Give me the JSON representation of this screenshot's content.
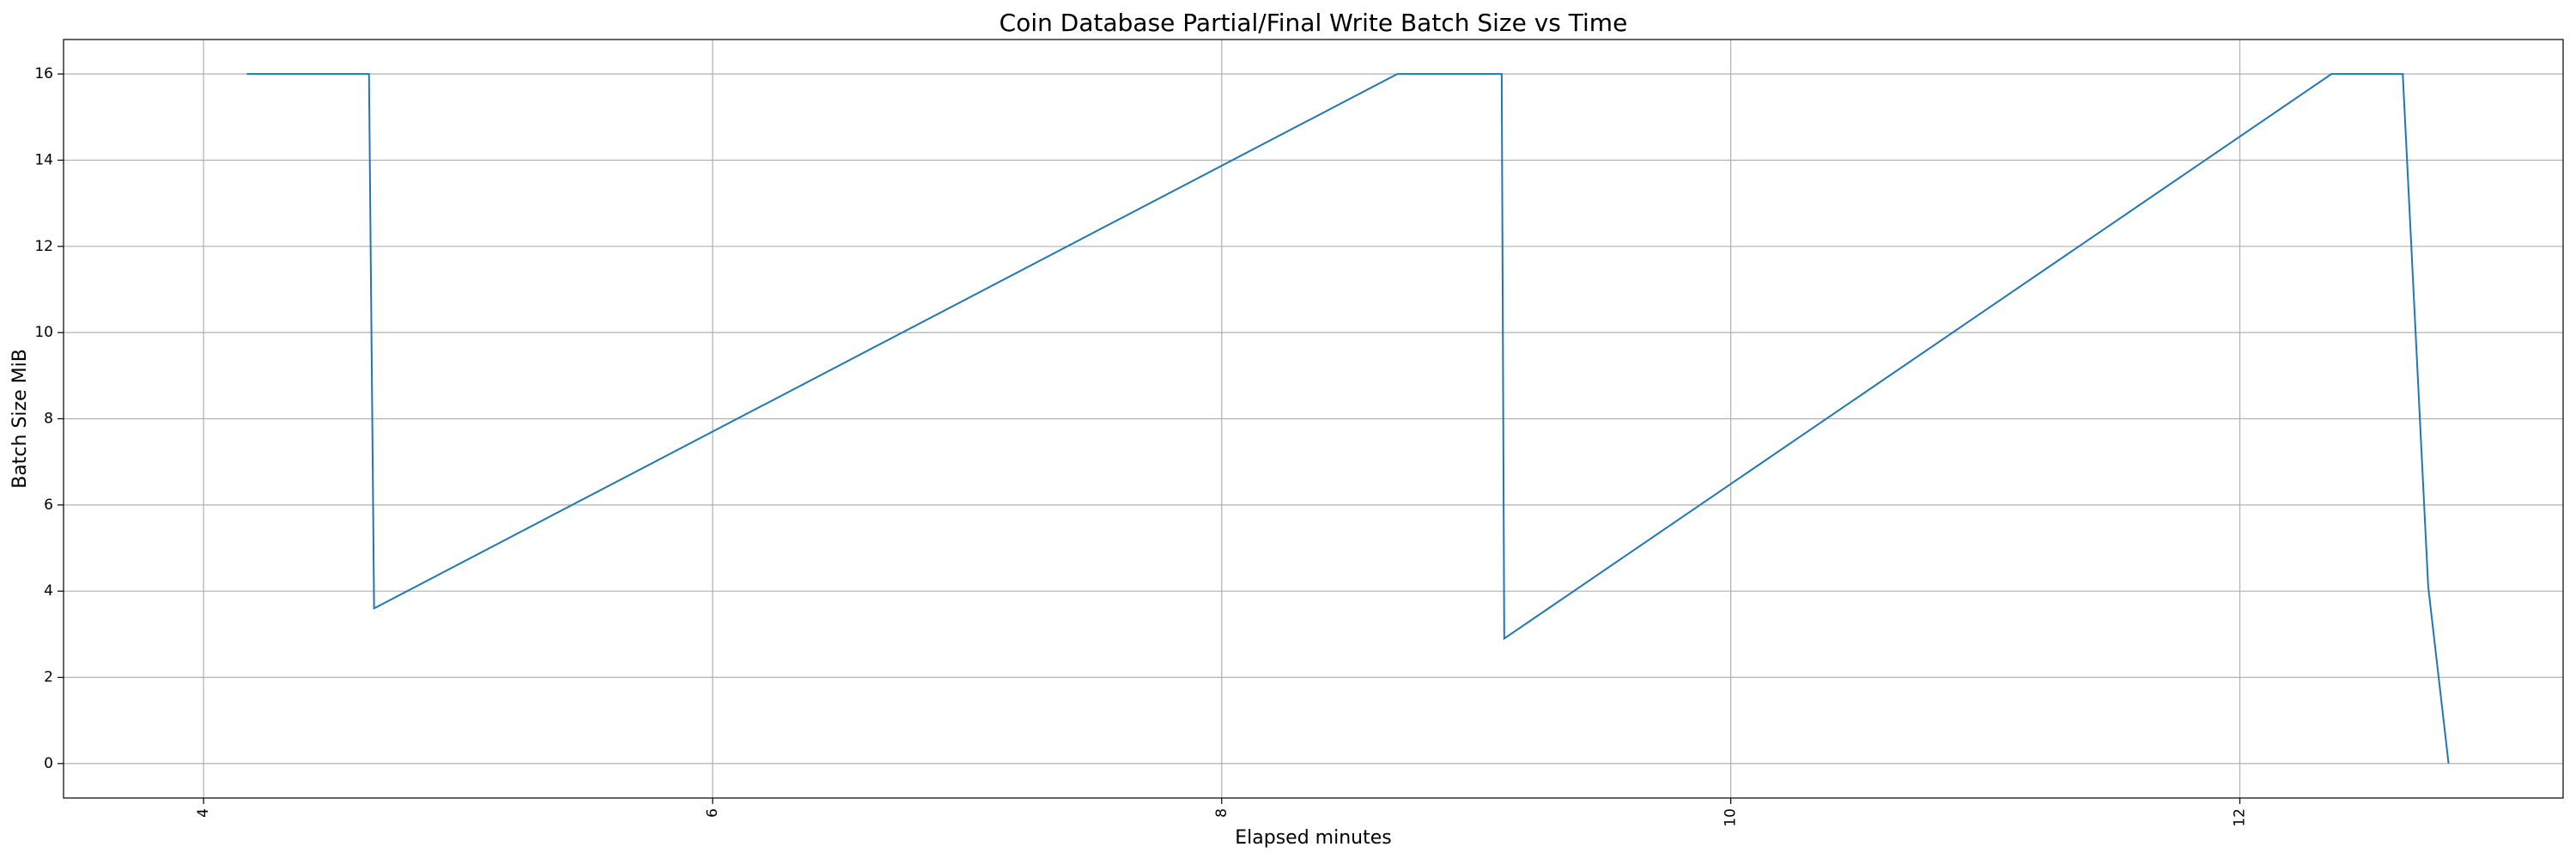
{
  "chart_data": {
    "type": "line",
    "title": "Coin Database Partial/Final Write Batch Size vs Time",
    "xlabel": "Elapsed minutes",
    "ylabel": "Batch Size MiB",
    "xlim": [
      3.45,
      13.27
    ],
    "ylim": [
      -0.8,
      16.8
    ],
    "xticks": [
      4,
      6,
      8,
      10,
      12
    ],
    "yticks": [
      0,
      2,
      4,
      6,
      8,
      10,
      12,
      14,
      16
    ],
    "xtick_rotation": 90,
    "grid": true,
    "legend": "none",
    "series": [
      {
        "color": "#1f77b4",
        "x": [
          4.17,
          4.65,
          4.67,
          8.69,
          9.1,
          9.11,
          12.36,
          12.64,
          12.74,
          12.82
        ],
        "y": [
          16,
          16,
          3.6,
          16,
          16,
          2.9,
          16,
          16,
          4.1,
          0
        ]
      }
    ]
  }
}
